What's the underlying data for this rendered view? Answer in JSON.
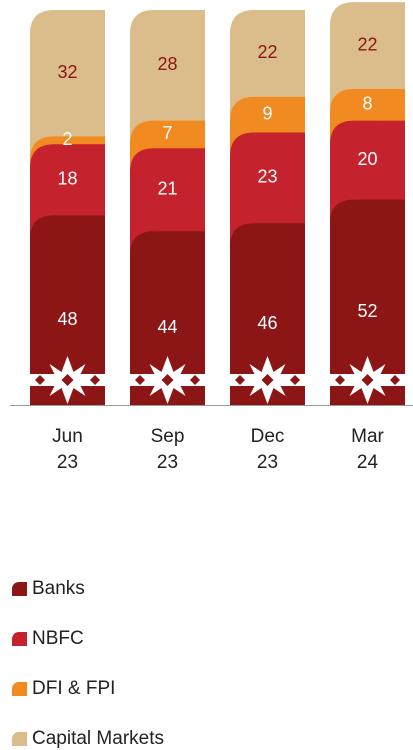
{
  "chart_data": {
    "type": "bar",
    "stacked": true,
    "categories": [
      "Jun 23",
      "Sep 23",
      "Dec 23",
      "Mar 24"
    ],
    "series": [
      {
        "name": "Banks",
        "color": "#8c1515",
        "values": [
          48,
          44,
          46,
          52
        ]
      },
      {
        "name": "NBFC",
        "color": "#c4222c",
        "values": [
          18,
          21,
          23,
          20
        ]
      },
      {
        "name": "DFI & FPI",
        "color": "#f28a22",
        "values": [
          2,
          7,
          9,
          8
        ]
      },
      {
        "name": "Capital Markets",
        "color": "#dbbd8b",
        "values": [
          32,
          28,
          22,
          22
        ]
      }
    ],
    "ylim": [
      0,
      100
    ]
  }
}
